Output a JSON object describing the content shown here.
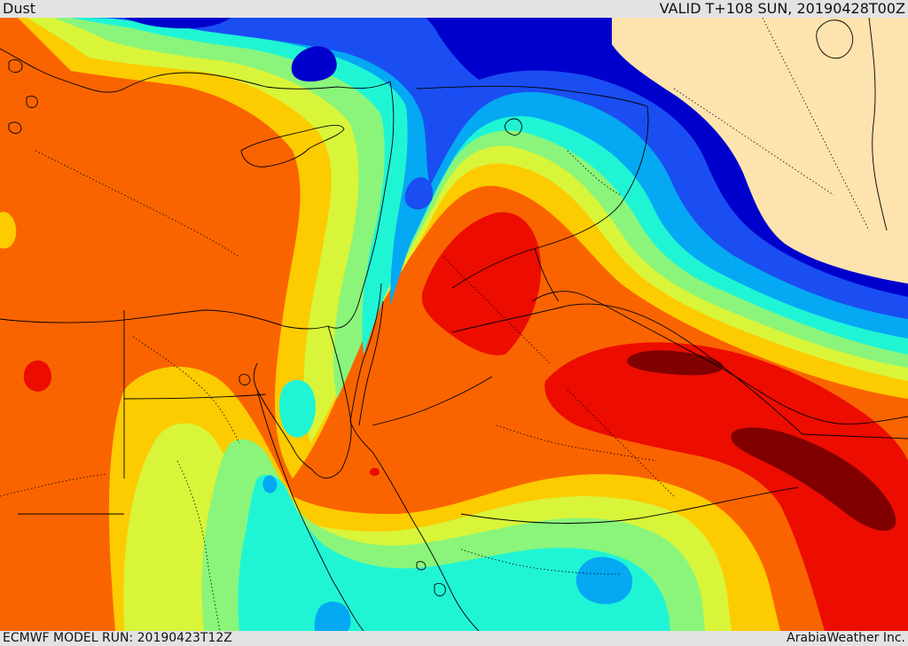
{
  "header": {
    "field_name": "Dust",
    "valid_time": "VALID T+108 SUN, 20190428T00Z"
  },
  "footer": {
    "model_run": "ECMWF MODEL RUN: 20190423T12Z",
    "credit": "ArabiaWeather Inc."
  },
  "palette": {
    "no_data_land": "#fde3ad",
    "navy": "#0000cd",
    "blue": "#1a4ef2",
    "sky": "#05a8f2",
    "cyan": "#1ff5d5",
    "light_green": "#8af57a",
    "yellow_green": "#d8f53a",
    "yellow": "#fccb00",
    "orange": "#fa6400",
    "red": "#ec0c00",
    "dark_red": "#800000",
    "coastline": "#000000"
  }
}
